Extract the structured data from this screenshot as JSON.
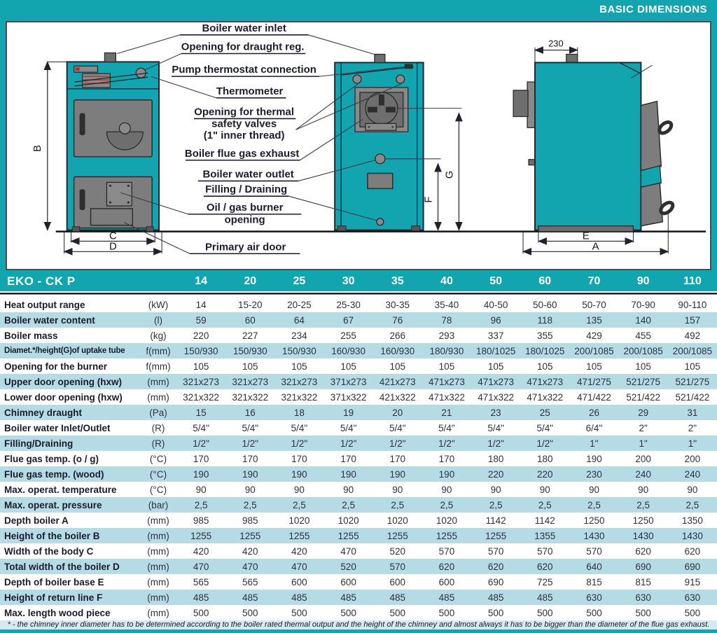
{
  "header": {
    "title": "BASIC DIMENSIONS"
  },
  "colors": {
    "teal": "#12a5b0",
    "rowalt": "#b5dce4",
    "footbg": "#d2eaf0"
  },
  "diagram": {
    "dim_230": "230",
    "dims": {
      "B": "B",
      "C": "C",
      "D": "D",
      "E": "E",
      "A": "A",
      "F": "F",
      "G": "G"
    },
    "callouts": {
      "boiler_water_inlet": "Boiler water inlet",
      "opening_draught_reg": "Opening for draught reg.",
      "pump_thermostat": "Pump thermostat connection",
      "thermometer": "Thermometer",
      "thermal_safety_1": "Opening for thermal",
      "thermal_safety_2": "safety valves",
      "thermal_safety_3": "(1\" inner thread)",
      "flue_gas_exhaust": "Boiler flue gas exhaust",
      "boiler_water_outlet": "Boiler water outlet",
      "filling_draining": "Filling / Draining",
      "oil_gas_burner_1": "Oil / gas burner",
      "oil_gas_burner_2": "opening",
      "primary_air_door": "Primary air door"
    }
  },
  "table": {
    "title": "EKO - CK P",
    "models": [
      "14",
      "20",
      "25",
      "30",
      "35",
      "40",
      "50",
      "60",
      "70",
      "90",
      "110"
    ],
    "rows": [
      {
        "label": "Heat output range",
        "unit": "(kW)",
        "values": [
          "14",
          "15-20",
          "20-25",
          "25-30",
          "30-35",
          "35-40",
          "40-50",
          "50-60",
          "50-70",
          "70-90",
          "90-110"
        ]
      },
      {
        "label": "Boiler water content",
        "unit": "(l)",
        "values": [
          "59",
          "60",
          "64",
          "67",
          "76",
          "78",
          "96",
          "118",
          "135",
          "140",
          "157"
        ]
      },
      {
        "label": "Boiler mass",
        "unit": "(kg)",
        "values": [
          "220",
          "227",
          "234",
          "255",
          "266",
          "293",
          "337",
          "355",
          "429",
          "455",
          "492"
        ]
      },
      {
        "label": "Diamet.*/height(G)of uptake tube",
        "unit": "f(mm)",
        "values": [
          "150/930",
          "150/930",
          "150/930",
          "160/930",
          "160/930",
          "180/930",
          "180/1025",
          "180/1025",
          "200/1085",
          "200/1085",
          "200/1085"
        ]
      },
      {
        "label": "Opening for the burner",
        "unit": "f(mm)",
        "values": [
          "105",
          "105",
          "105",
          "105",
          "105",
          "105",
          "105",
          "105",
          "105",
          "105",
          "105"
        ]
      },
      {
        "label": "Upper door opening (hxw)",
        "unit": "(mm)",
        "values": [
          "321x273",
          "321x273",
          "321x273",
          "371x273",
          "421x273",
          "471x273",
          "471x273",
          "471x273",
          "471/275",
          "521/275",
          "521/275"
        ]
      },
      {
        "label": "Lower door opening (hxw)",
        "unit": "(mm)",
        "values": [
          "321x322",
          "321x322",
          "321x322",
          "371x322",
          "421x322",
          "471x322",
          "471x322",
          "471x322",
          "471/422",
          "521/422",
          "521/422"
        ]
      },
      {
        "label": "Chimney draught",
        "unit": "(Pa)",
        "values": [
          "15",
          "16",
          "18",
          "19",
          "20",
          "21",
          "23",
          "25",
          "26",
          "29",
          "31"
        ]
      },
      {
        "label": "Boiler water Inlet/Outlet",
        "unit": "(R)",
        "values": [
          "5/4\"",
          "5/4\"",
          "5/4\"",
          "5/4\"",
          "5/4\"",
          "5/4\"",
          "5/4\"",
          "5/4\"",
          "6/4\"",
          "2\"",
          "2\""
        ]
      },
      {
        "label": "Filling/Draining",
        "unit": "(R)",
        "values": [
          "1/2\"",
          "1/2\"",
          "1/2\"",
          "1/2\"",
          "1/2\"",
          "1/2\"",
          "1/2\"",
          "1/2\"",
          "1\"",
          "1\"",
          "1\""
        ]
      },
      {
        "label": "Flue gas temp. (o / g)",
        "unit": "(°C)",
        "values": [
          "170",
          "170",
          "170",
          "170",
          "170",
          "170",
          "180",
          "180",
          "190",
          "200",
          "200"
        ]
      },
      {
        "label": "Flue gas temp. (wood)",
        "unit": "(°C)",
        "values": [
          "190",
          "190",
          "190",
          "190",
          "190",
          "190",
          "220",
          "220",
          "230",
          "240",
          "240"
        ]
      },
      {
        "label": "Max. operat. temperature",
        "unit": "(°C)",
        "values": [
          "90",
          "90",
          "90",
          "90",
          "90",
          "90",
          "90",
          "90",
          "90",
          "90",
          "90"
        ]
      },
      {
        "label": "Max. operat. pressure",
        "unit": "(bar)",
        "values": [
          "2,5",
          "2,5",
          "2,5",
          "2,5",
          "2,5",
          "2,5",
          "2,5",
          "2,5",
          "2,5",
          "2,5",
          "2,5"
        ]
      },
      {
        "label": "Depth boiler A",
        "unit": "(mm)",
        "values": [
          "985",
          "985",
          "1020",
          "1020",
          "1020",
          "1020",
          "1142",
          "1142",
          "1250",
          "1250",
          "1350"
        ]
      },
      {
        "label": "Height of the boiler B",
        "unit": "(mm)",
        "values": [
          "1255",
          "1255",
          "1255",
          "1255",
          "1255",
          "1255",
          "1255",
          "1355",
          "1430",
          "1430",
          "1430"
        ]
      },
      {
        "label": "Width of the body C",
        "unit": "(mm)",
        "values": [
          "420",
          "420",
          "420",
          "470",
          "520",
          "570",
          "570",
          "570",
          "570",
          "620",
          "620"
        ]
      },
      {
        "label": "Total width of the boiler D",
        "unit": "(mm)",
        "values": [
          "470",
          "470",
          "470",
          "520",
          "570",
          "620",
          "620",
          "620",
          "640",
          "690",
          "690"
        ]
      },
      {
        "label": "Depth of boiler base E",
        "unit": "(mm)",
        "values": [
          "565",
          "565",
          "600",
          "600",
          "600",
          "600",
          "690",
          "725",
          "815",
          "815",
          "915"
        ]
      },
      {
        "label": "Height of return line F",
        "unit": "(mm)",
        "values": [
          "485",
          "485",
          "485",
          "485",
          "485",
          "485",
          "485",
          "485",
          "630",
          "630",
          "630"
        ]
      },
      {
        "label": "Max. length wood piece",
        "unit": "(mm)",
        "values": [
          "500",
          "500",
          "500",
          "500",
          "500",
          "500",
          "500",
          "500",
          "500",
          "500",
          "500"
        ]
      }
    ],
    "footnote": "* - the chimney inner diameter has to be determined according to the boiler rated thermal output and the height of the chimney and almost always it has to be bigger than the diameter of the flue gas exhaust."
  }
}
